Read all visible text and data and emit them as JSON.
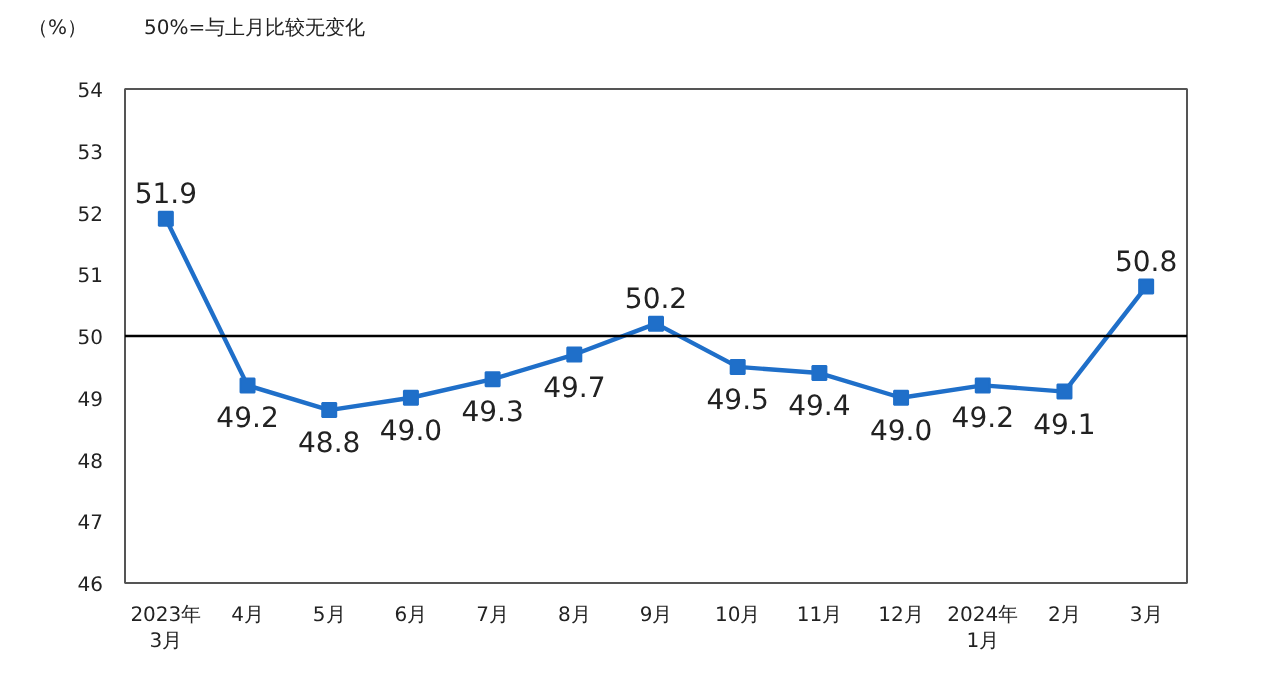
{
  "chart_data": {
    "type": "line",
    "ylabel": "（%）",
    "annotations": [
      "50%=与上月比较无变化"
    ],
    "categories": [
      "2023年\n3月",
      "4月",
      "5月",
      "6月",
      "7月",
      "8月",
      "9月",
      "10月",
      "11月",
      "12月",
      "2024年\n1月",
      "2月",
      "3月"
    ],
    "series": [
      {
        "color": "#1f6fc9",
        "values": [
          51.9,
          49.2,
          48.8,
          49.0,
          49.3,
          49.7,
          50.2,
          49.5,
          49.4,
          49.0,
          49.2,
          49.1,
          50.8
        ]
      }
    ],
    "ylim": [
      46,
      54
    ],
    "yticks": [
      46,
      47,
      48,
      49,
      50,
      51,
      52,
      53,
      54
    ],
    "ref_lines": [
      {
        "axis": "y",
        "value": 50,
        "color": "#000000"
      }
    ],
    "value_labels": [
      "51.9",
      "49.2",
      "48.8",
      "49.0",
      "49.3",
      "49.7",
      "50.2",
      "49.5",
      "49.4",
      "49.0",
      "49.2",
      "49.1",
      "50.8"
    ],
    "marker": "square",
    "grid": false
  }
}
